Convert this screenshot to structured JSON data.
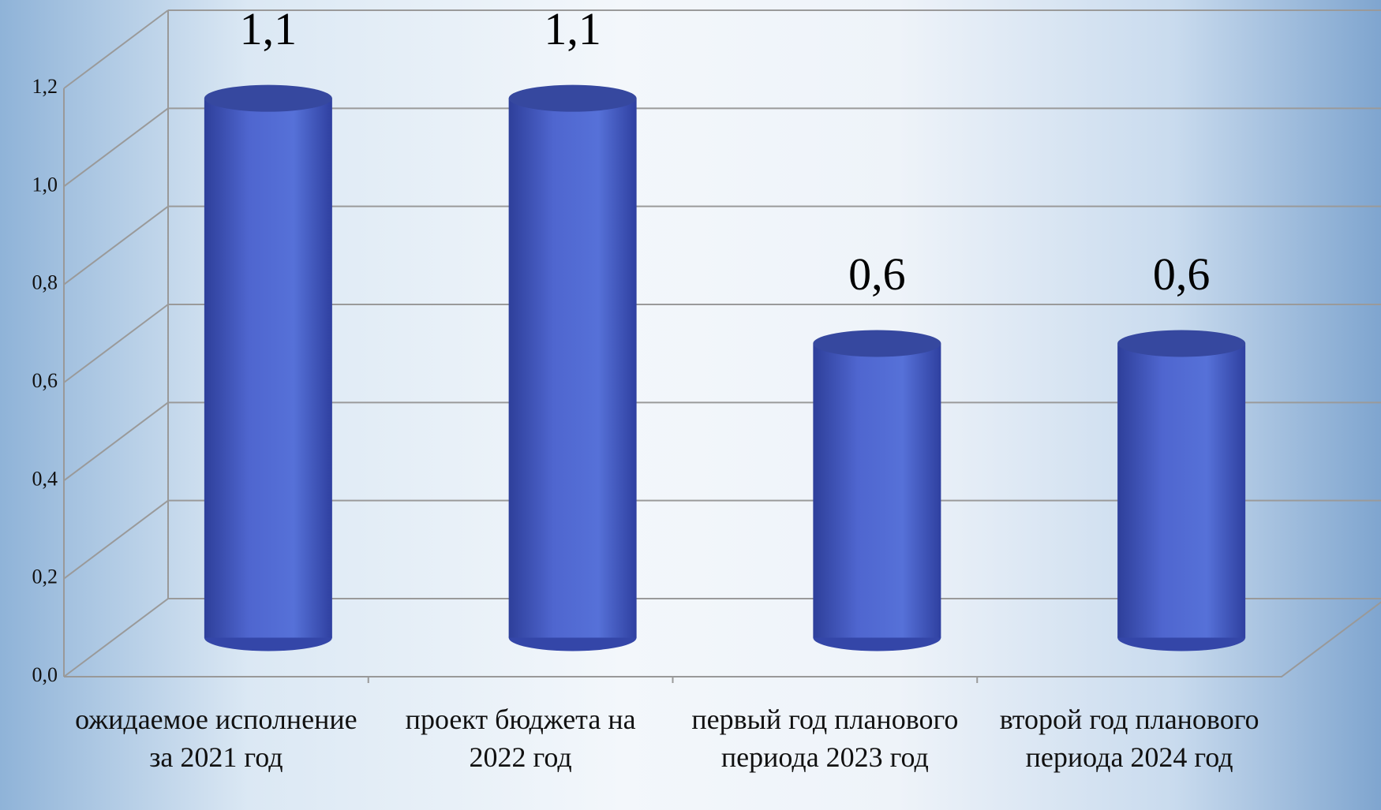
{
  "chart_data": {
    "type": "cylinder-bar",
    "categories": [
      "ожидаемое исполнение за 2021 год",
      "проект бюджета на 2022 год",
      "первый год планового периода 2023 год",
      "второй год планового периода 2024 год"
    ],
    "values": [
      1.1,
      1.1,
      0.6,
      0.6
    ],
    "value_labels": [
      "1,1",
      "1,1",
      "0,6",
      "0,6"
    ],
    "color": "#4f66cf",
    "ylim": [
      0,
      1.2
    ],
    "yticks": [
      {
        "value": 0,
        "label": "0,0"
      },
      {
        "value": 0.2,
        "label": "0,2"
      },
      {
        "value": 0.4,
        "label": "0,4"
      },
      {
        "value": 0.6,
        "label": "0,6"
      },
      {
        "value": 0.8,
        "label": "0,8"
      },
      {
        "value": 1.0,
        "label": "1,0"
      },
      {
        "value": 1.2,
        "label": "1,2"
      }
    ],
    "grid": true
  }
}
